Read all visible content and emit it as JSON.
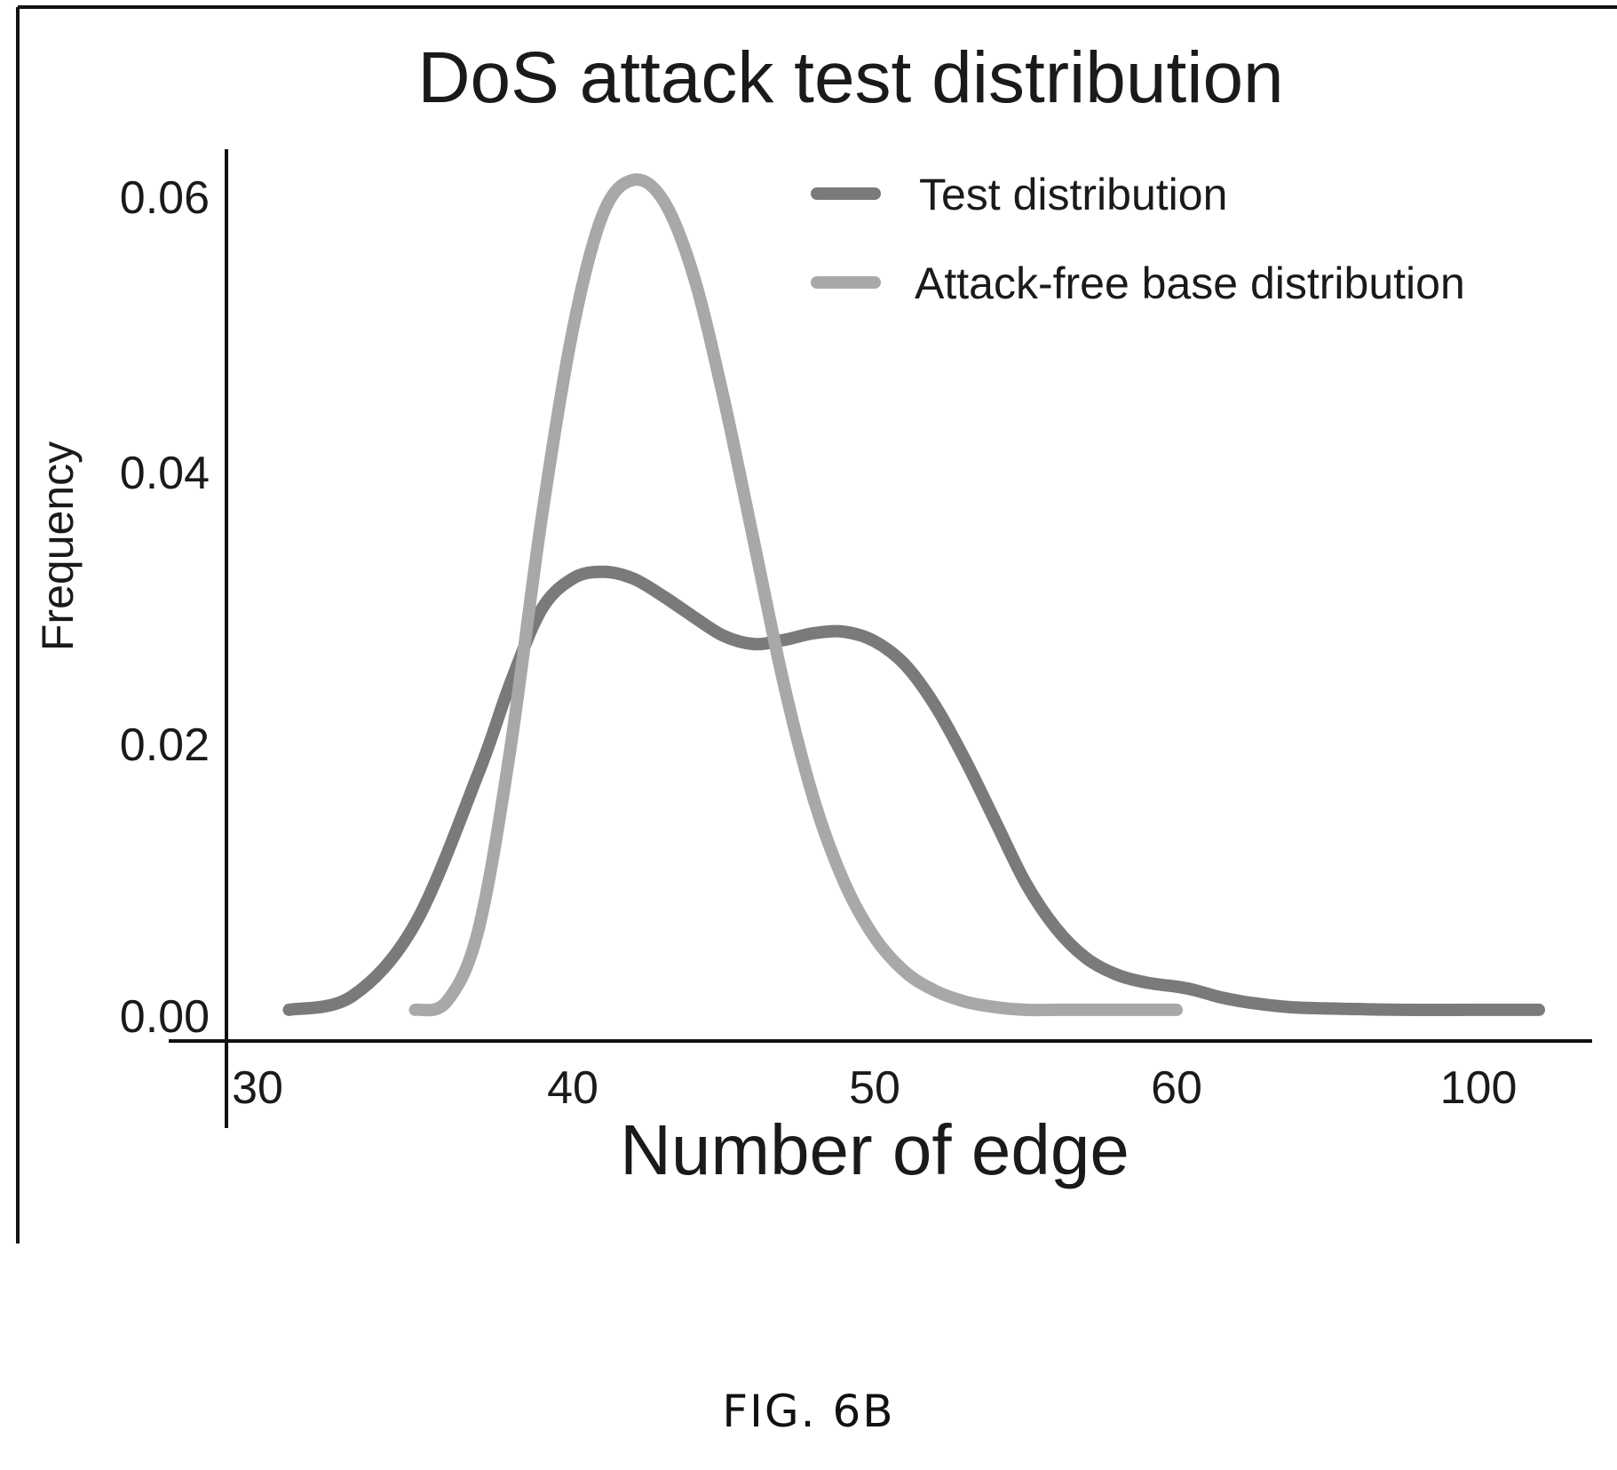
{
  "figure": {
    "caption": "FIG. 6B"
  },
  "chart_data": {
    "type": "line",
    "title": "DoS attack test distribution",
    "xlabel": "Number of edge",
    "ylabel": "Frequency",
    "x_tick_labels": [
      "30",
      "40",
      "50",
      "60",
      "100"
    ],
    "y_tick_labels": [
      "0.00",
      "0.02",
      "0.04",
      "0.06"
    ],
    "y_ticks": [
      0.0,
      0.02,
      0.04,
      0.06
    ],
    "ylim": [
      0.0,
      0.063
    ],
    "grid": false,
    "legend_position": "top-right",
    "series": [
      {
        "name": "Test distribution",
        "color": "#7a7a7a",
        "x": [
          31,
          33,
          35,
          37,
          38,
          39,
          40,
          41,
          42,
          43,
          44,
          45,
          46,
          47,
          48,
          49,
          50,
          51,
          52,
          53,
          54,
          55,
          56,
          57,
          58,
          59,
          60,
          62,
          64,
          66,
          70,
          75,
          80,
          90,
          100,
          108
        ],
        "y": [
          0.0002,
          0.0012,
          0.0065,
          0.0175,
          0.024,
          0.0295,
          0.0318,
          0.0323,
          0.0318,
          0.0305,
          0.029,
          0.0276,
          0.027,
          0.0273,
          0.0278,
          0.0279,
          0.0272,
          0.0255,
          0.0225,
          0.0185,
          0.014,
          0.0095,
          0.0062,
          0.004,
          0.0028,
          0.0022,
          0.0019,
          0.0017,
          0.0014,
          0.0011,
          0.0007,
          0.0004,
          0.0003,
          0.0002,
          0.0002,
          0.0002
        ]
      },
      {
        "name": "Attack-free base distribution",
        "color": "#a8a8a8",
        "x": [
          35,
          36,
          37,
          38,
          39,
          40,
          41,
          42,
          43,
          44,
          45,
          46,
          47,
          48,
          49,
          50,
          51,
          52,
          53,
          54,
          55,
          56,
          57,
          58,
          59,
          60
        ],
        "y": [
          0.0002,
          0.0008,
          0.006,
          0.019,
          0.036,
          0.05,
          0.0585,
          0.061,
          0.0595,
          0.054,
          0.045,
          0.0345,
          0.024,
          0.0155,
          0.0095,
          0.0055,
          0.003,
          0.0016,
          0.0008,
          0.0004,
          0.0002,
          0.0002,
          0.0002,
          0.0002,
          0.0002,
          0.0002
        ]
      }
    ]
  }
}
